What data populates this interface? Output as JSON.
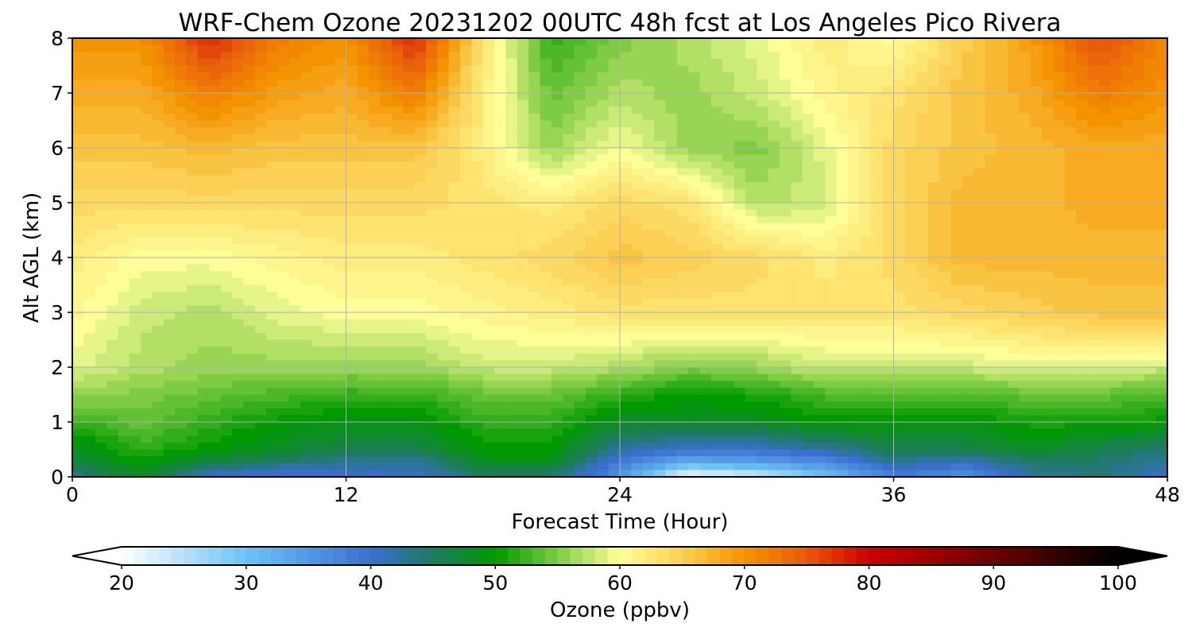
{
  "chart_data": {
    "type": "heatmap",
    "title": "WRF-Chem Ozone  20231202 00UTC 48h fcst at Los Angeles Pico Rivera",
    "xlabel": "Forecast Time (Hour)",
    "ylabel": "Alt AGL (km)",
    "xlim": [
      0,
      48
    ],
    "ylim": [
      0,
      8
    ],
    "x_ticks": [
      0,
      12,
      24,
      36,
      48
    ],
    "y_ticks": [
      0,
      1,
      2,
      3,
      4,
      5,
      6,
      7,
      8
    ],
    "grid": true,
    "x": [
      0,
      3,
      6,
      9,
      12,
      15,
      18,
      21,
      24,
      27,
      30,
      33,
      36,
      39,
      42,
      45,
      48
    ],
    "y": [
      0,
      0.25,
      0.5,
      1,
      1.5,
      2,
      3,
      4,
      5,
      6,
      7,
      8
    ],
    "z": [
      [
        43,
        48,
        40,
        38,
        40,
        40,
        44,
        44,
        36,
        20,
        22,
        30,
        38,
        36,
        42,
        44,
        40
      ],
      [
        46,
        50,
        46,
        44,
        42,
        42,
        48,
        48,
        38,
        32,
        34,
        36,
        42,
        40,
        44,
        44,
        42
      ],
      [
        48,
        52,
        50,
        48,
        46,
        46,
        50,
        50,
        42,
        40,
        40,
        42,
        46,
        46,
        48,
        46,
        44
      ],
      [
        52,
        54,
        52,
        50,
        49,
        49,
        52,
        52,
        48,
        48,
        48,
        50,
        50,
        49,
        51,
        51,
        50
      ],
      [
        56,
        55,
        54,
        53,
        52,
        52,
        54,
        54,
        52,
        50,
        51,
        53,
        54,
        53,
        54,
        54,
        53
      ],
      [
        59,
        57,
        56,
        56,
        56,
        56,
        58,
        58,
        57,
        55,
        56,
        58,
        58,
        58,
        59,
        59,
        58
      ],
      [
        61,
        58,
        57,
        59,
        60,
        60,
        61,
        62,
        63,
        63,
        63,
        63,
        63,
        64,
        65,
        66,
        66
      ],
      [
        62,
        60,
        60,
        61,
        62,
        62,
        63,
        64,
        66,
        65,
        64,
        62,
        64,
        67,
        67,
        67,
        67
      ],
      [
        64,
        64,
        64,
        64,
        64,
        64,
        63,
        62,
        64,
        63,
        57,
        58,
        64,
        67,
        67,
        68,
        68
      ],
      [
        66,
        66,
        67,
        66,
        66,
        66,
        62,
        56,
        60,
        56,
        55,
        59,
        64,
        66,
        67,
        68,
        68
      ],
      [
        68,
        68,
        72,
        69,
        68,
        72,
        62,
        54,
        57,
        56,
        58,
        61,
        63,
        66,
        68,
        72,
        70
      ],
      [
        70,
        70,
        78,
        72,
        70,
        78,
        63,
        52,
        55,
        57,
        59,
        62,
        60,
        65,
        69,
        76,
        71
      ]
    ],
    "colorbar": {
      "label": "Ozone  (ppbv)",
      "ticks": [
        20,
        30,
        40,
        50,
        60,
        70,
        80,
        90,
        100
      ],
      "extend": "both",
      "stops": [
        [
          20,
          "#ffffff"
        ],
        [
          30,
          "#6ec2f6"
        ],
        [
          40,
          "#3a6fd0"
        ],
        [
          45,
          "#1e7a5e"
        ],
        [
          50,
          "#009900"
        ],
        [
          55,
          "#7ecb44"
        ],
        [
          60,
          "#ffff9a"
        ],
        [
          65,
          "#fbd054"
        ],
        [
          70,
          "#f49300"
        ],
        [
          75,
          "#e85a0c"
        ],
        [
          80,
          "#cc0000"
        ],
        [
          90,
          "#6a0000"
        ],
        [
          100,
          "#000000"
        ]
      ]
    }
  }
}
